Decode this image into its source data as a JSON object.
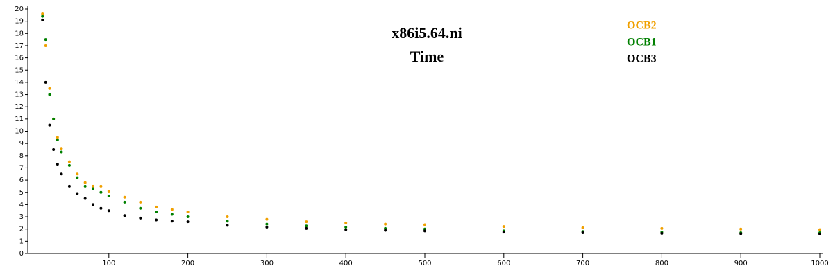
{
  "chart_data": {
    "type": "scatter",
    "title": "x86i5.64.ni",
    "subtitle": "Time",
    "x": [
      16,
      20,
      25,
      30,
      35,
      40,
      50,
      60,
      70,
      80,
      90,
      100,
      120,
      140,
      160,
      180,
      200,
      250,
      300,
      350,
      400,
      450,
      500,
      600,
      700,
      800,
      900,
      1000
    ],
    "series": [
      {
        "name": "OCB2",
        "color": "#f0a000",
        "values": [
          19.6,
          17,
          13.5,
          11,
          9.5,
          8.6,
          7.5,
          6.5,
          5.8,
          5.5,
          5.5,
          5.1,
          4.6,
          4.2,
          3.8,
          3.6,
          3.4,
          3.0,
          2.8,
          2.6,
          2.5,
          2.4,
          2.35,
          2.2,
          2.1,
          2.05,
          2.0,
          1.95
        ]
      },
      {
        "name": "OCB1",
        "color": "#008000",
        "values": [
          19.4,
          17.5,
          13,
          11,
          9.3,
          8.3,
          7.2,
          6.2,
          5.5,
          5.3,
          5.0,
          4.7,
          4.2,
          3.7,
          3.4,
          3.2,
          3.0,
          2.65,
          2.4,
          2.25,
          2.15,
          2.05,
          2.0,
          1.85,
          1.8,
          1.75,
          1.7,
          1.7
        ]
      },
      {
        "name": "OCB3",
        "color": "#000000",
        "values": [
          19.1,
          14,
          10.5,
          8.5,
          7.3,
          6.5,
          5.5,
          4.9,
          4.5,
          4.0,
          3.7,
          3.5,
          3.1,
          2.9,
          2.75,
          2.65,
          2.6,
          2.3,
          2.15,
          2.05,
          1.95,
          1.9,
          1.85,
          1.75,
          1.7,
          1.65,
          1.62,
          1.6
        ]
      }
    ],
    "xlim": [
      0,
      1000
    ],
    "xticks": [
      100,
      200,
      300,
      400,
      500,
      600,
      700,
      800,
      900,
      1000
    ],
    "ylim": [
      0,
      20
    ],
    "yticks": [
      0,
      1,
      2,
      3,
      4,
      5,
      6,
      7,
      8,
      9,
      10,
      11,
      12,
      13,
      14,
      15,
      16,
      17,
      18,
      19,
      20
    ]
  }
}
